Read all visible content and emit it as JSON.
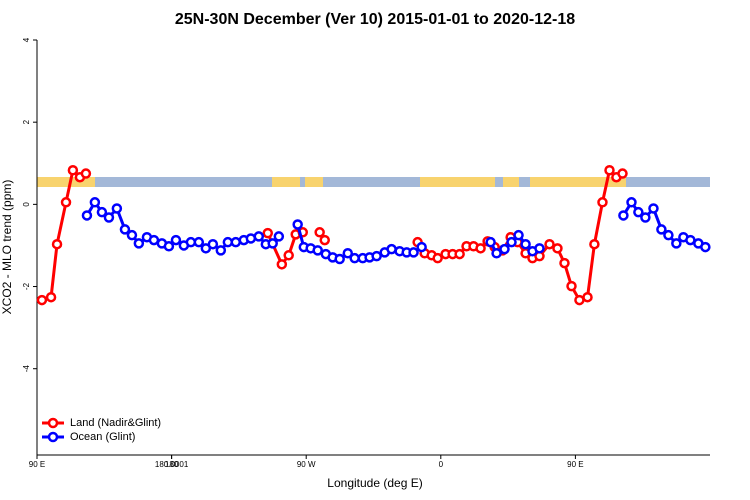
{
  "chart_data": {
    "type": "line",
    "title": "25N-30N December (Ver 10)   2015-01-01 to 2020-12-18",
    "x_label": "Longitude (deg E)",
    "y_label": "XCO2 - MLO trend (ppm)",
    "xlim": [
      90,
      540
    ],
    "ylim": [
      -6.1,
      4
    ],
    "xticks": [
      {
        "value": 90,
        "label": "90 E"
      },
      180,
      {
        "value": 270,
        "label": "90 W"
      },
      {
        "value": 360,
        "label": "0"
      },
      {
        "value": 450,
        "label": "90 E"
      },
      180.0001
    ],
    "yticks": [
      4,
      2,
      0,
      -2,
      -4
    ],
    "legend": "bottom-left",
    "series": [
      {
        "name": "Land (Nadir&Glint)",
        "color": "#ff0000",
        "x": [
          93.3,
          99.4,
          103.4,
          109.4,
          114.0,
          118.7,
          122.7,
          180,
          244.3,
          253.7,
          258.3,
          263.0,
          267.7,
          273,
          279.0,
          282.4,
          310,
          344.5,
          349.2,
          353.9,
          357.9,
          363.2,
          367.9,
          372.6,
          377.2,
          381.9,
          386.6,
          391.3,
          396.0,
          401.3,
          406.7,
          411.3,
          416.7,
          421.3,
          426.0,
          432.7,
          438.0,
          442.7,
          447.4,
          452.7,
          458.1,
          462.7,
          468.1,
          472.8,
          477.4,
          481.5
        ],
        "values": [
          -2.33,
          -2.26,
          -0.97,
          0.05,
          0.83,
          0.66,
          0.75,
          null,
          -0.7,
          -1.46,
          -1.24,
          -0.73,
          -0.68,
          null,
          -0.68,
          -0.87,
          null,
          -0.92,
          -1.19,
          -1.24,
          -1.31,
          -1.21,
          -1.21,
          -1.21,
          -1.02,
          -1.02,
          -1.07,
          -0.9,
          -1.04,
          -1.12,
          -0.8,
          -0.92,
          -1.19,
          -1.31,
          -1.26,
          -0.97,
          -1.07,
          -1.43,
          -1.99,
          -2.33,
          -2.26,
          -0.97,
          0.05,
          0.83,
          0.66,
          0.75
        ]
      },
      {
        "name": "Ocean (Glint)",
        "color": "#0000ff",
        "x": [
          123.4,
          128.7,
          133.4,
          138.1,
          143.4,
          148.8,
          153.5,
          158.1,
          163.5,
          168.2,
          173.5,
          178.2,
          182.9,
          188.2,
          192.9,
          198.2,
          202.9,
          207.6,
          212.9,
          217.6,
          222.9,
          228.3,
          233.0,
          238.3,
          243.0,
          247.6,
          251.7,
          258,
          264.3,
          268.4,
          273.0,
          277.7,
          283.1,
          287.7,
          292.4,
          297.8,
          302.4,
          307.8,
          312.4,
          317.1,
          322.5,
          327.1,
          332.5,
          337.2,
          341.8,
          347.2,
          370,
          393.3,
          397.3,
          402.6,
          407.3,
          412.0,
          416.7,
          421.3,
          426.0,
          454,
          482.1,
          487.5,
          492.1,
          496.8,
          502.2,
          507.5,
          512.2,
          517.5,
          522.2,
          526.9,
          532.2,
          536.9
        ],
        "values": [
          -0.27,
          0.05,
          -0.19,
          -0.32,
          -0.1,
          -0.61,
          -0.75,
          -0.95,
          -0.8,
          -0.87,
          -0.95,
          -1.02,
          -0.87,
          -1.0,
          -0.92,
          -0.92,
          -1.07,
          -0.97,
          -1.12,
          -0.92,
          -0.92,
          -0.87,
          -0.83,
          -0.78,
          -0.97,
          -0.95,
          -0.78,
          null,
          -0.49,
          -1.04,
          -1.07,
          -1.12,
          -1.21,
          -1.29,
          -1.33,
          -1.19,
          -1.31,
          -1.31,
          -1.29,
          -1.26,
          -1.17,
          -1.09,
          -1.14,
          -1.17,
          -1.17,
          -1.04,
          null,
          -0.92,
          -1.19,
          -1.09,
          -0.92,
          -0.75,
          -0.97,
          -1.14,
          -1.07,
          null,
          -0.27,
          0.05,
          -0.19,
          -0.32,
          -0.1,
          -0.61,
          -0.75,
          -0.95,
          -0.8,
          -0.87,
          -0.95,
          -1.04
        ]
      }
    ]
  }
}
